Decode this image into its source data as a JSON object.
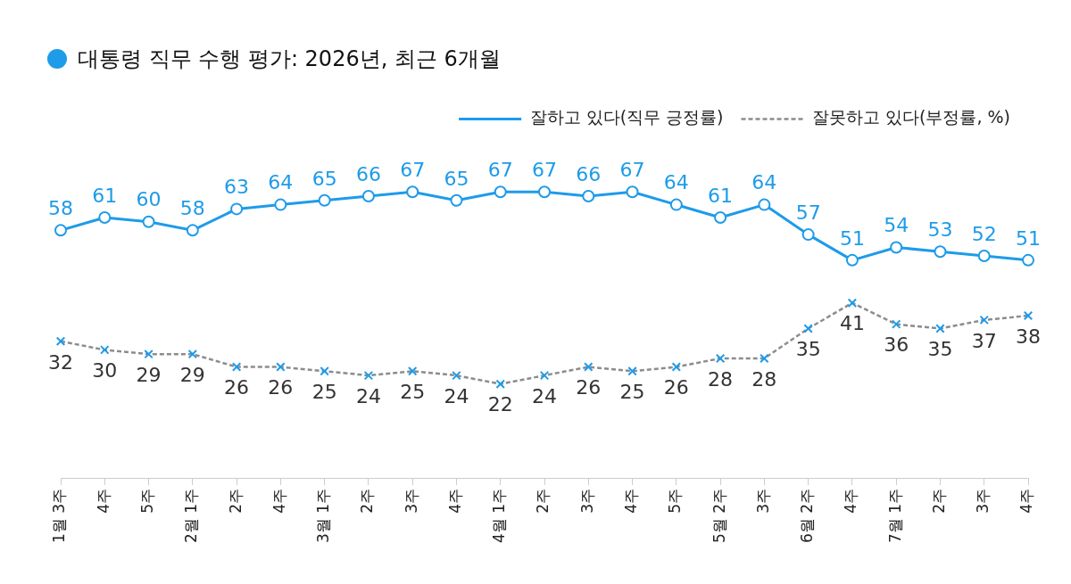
{
  "chart_data": {
    "type": "line",
    "title": "대통령 직무 수행 평가: 2026년, 최근 6개월",
    "categories": [
      "1월 3주",
      "4주",
      "5주",
      "2월 1주",
      "2주",
      "4주",
      "3월 1주",
      "2주",
      "3주",
      "4주",
      "4월 1주",
      "2주",
      "3주",
      "4주",
      "5주",
      "5월 2주",
      "3주",
      "6월 2주",
      "4주",
      "7월 1주",
      "2주",
      "3주",
      "4주"
    ],
    "series": [
      {
        "name": "잘하고 있다(직무 긍정률)",
        "color": "#1e9be9",
        "marker": "circle",
        "line_style": "solid",
        "values": [
          58,
          61,
          60,
          58,
          63,
          64,
          65,
          66,
          67,
          65,
          67,
          67,
          66,
          67,
          64,
          61,
          64,
          57,
          51,
          54,
          53,
          52,
          51
        ]
      },
      {
        "name": "잘못하고 있다(부정률, %)",
        "color": "#8c8c8c",
        "marker": "cross",
        "line_style": "dashed",
        "values": [
          32,
          30,
          29,
          29,
          26,
          26,
          25,
          24,
          25,
          24,
          22,
          24,
          26,
          25,
          26,
          28,
          28,
          35,
          41,
          36,
          35,
          37,
          38
        ]
      }
    ],
    "tick_labels": "x",
    "grid": false,
    "legend": "top right",
    "data_labels": true
  }
}
